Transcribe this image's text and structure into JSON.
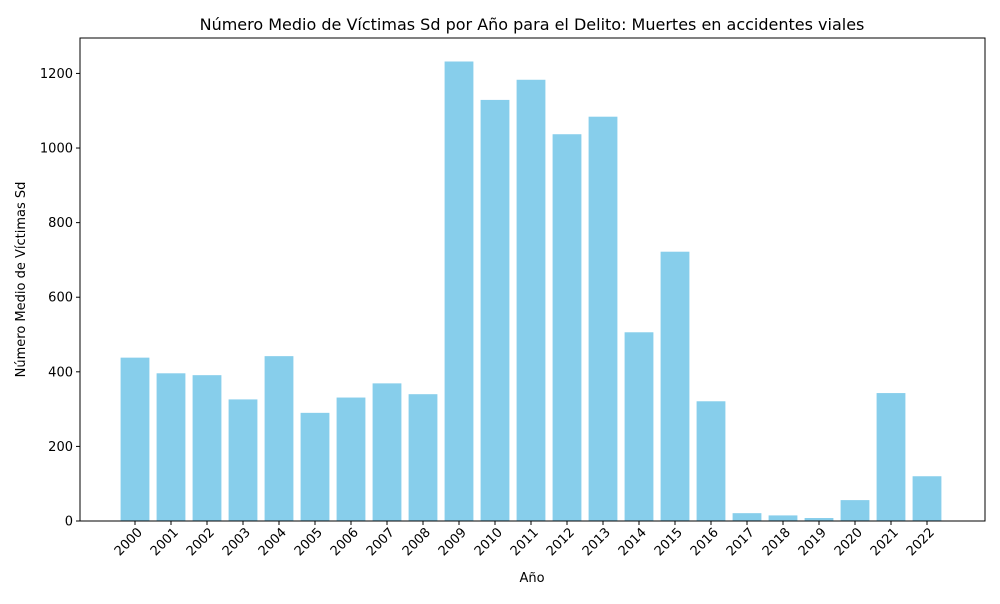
{
  "chart_data": {
    "type": "bar",
    "title": "Número Medio de Víctimas Sd por Año para el Delito: Muertes en accidentes viales",
    "xlabel": "Año",
    "ylabel": "Número Medio de Víctimas Sd",
    "categories": [
      "2000",
      "2001",
      "2002",
      "2003",
      "2004",
      "2005",
      "2006",
      "2007",
      "2008",
      "2009",
      "2010",
      "2011",
      "2012",
      "2013",
      "2014",
      "2015",
      "2016",
      "2017",
      "2018",
      "2019",
      "2020",
      "2021",
      "2022"
    ],
    "values": [
      438,
      396,
      391,
      326,
      442,
      290,
      331,
      369,
      340,
      1232,
      1129,
      1183,
      1037,
      1084,
      506,
      722,
      321,
      21,
      15,
      8,
      56,
      343,
      120
    ],
    "ylim": [
      0,
      1295
    ],
    "yticks": [
      0,
      200,
      400,
      600,
      800,
      1000,
      1200
    ],
    "grid": false,
    "bar_color": "#87ceeb"
  }
}
